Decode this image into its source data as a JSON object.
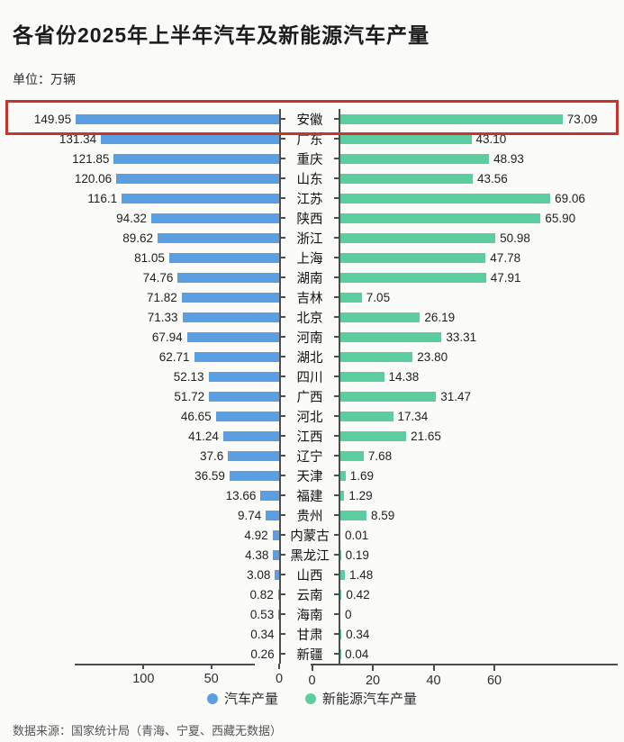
{
  "title": "各省份2025年上半年汽车及新能源汽车产量",
  "unit_label": "单位：万辆",
  "source": "数据来源：国家统计局（青海、宁夏、西藏无数据）",
  "legend": [
    {
      "label": "汽车产量",
      "color": "#5B9EE1"
    },
    {
      "label": "新能源汽车产量",
      "color": "#5CCD9E"
    }
  ],
  "highlight": {
    "province": "安徽",
    "color": "#C8352B"
  },
  "chart_data": {
    "type": "bar",
    "orientation": "horizontal-diverging",
    "grid": false,
    "categories": [
      "安徽",
      "广东",
      "重庆",
      "山东",
      "江苏",
      "陕西",
      "浙江",
      "上海",
      "湖南",
      "吉林",
      "北京",
      "河南",
      "湖北",
      "四川",
      "广西",
      "河北",
      "江西",
      "辽宁",
      "天津",
      "福建",
      "贵州",
      "内蒙古",
      "黑龙江",
      "山西",
      "云南",
      "海南",
      "甘肃",
      "新疆"
    ],
    "series": [
      {
        "name": "汽车产量",
        "side": "left",
        "color": "#5B9EE1",
        "xlim": [
          0,
          150
        ],
        "axis_ticks": [
          100,
          50,
          0
        ],
        "values": [
          149.95,
          131.34,
          121.85,
          120.06,
          116.1,
          94.32,
          89.62,
          81.05,
          74.76,
          71.82,
          71.33,
          67.94,
          62.71,
          52.13,
          51.72,
          46.65,
          41.24,
          37.6,
          36.59,
          13.66,
          9.74,
          4.92,
          4.38,
          3.08,
          0.82,
          0.53,
          0.34,
          0.26
        ],
        "labels": [
          "149.95",
          "131.34",
          "121.85",
          "120.06",
          "116.1",
          "94.32",
          "89.62",
          "81.05",
          "74.76",
          "71.82",
          "71.33",
          "67.94",
          "62.71",
          "52.13",
          "51.72",
          "46.65",
          "41.24",
          "37.6",
          "36.59",
          "13.66",
          "9.74",
          "4.92",
          "4.38",
          "3.08",
          "0.82",
          "0.53",
          "0.34",
          "0.26"
        ]
      },
      {
        "name": "新能源汽车产量",
        "side": "right",
        "color": "#5CCD9E",
        "xlim": [
          0,
          90
        ],
        "axis_ticks": [
          0,
          20,
          40,
          60
        ],
        "values": [
          73.09,
          43.1,
          48.93,
          43.56,
          69.06,
          65.9,
          50.98,
          47.78,
          47.91,
          7.05,
          26.19,
          33.31,
          23.8,
          14.38,
          31.47,
          17.34,
          21.65,
          7.68,
          1.69,
          1.29,
          8.59,
          0.01,
          0.19,
          1.48,
          0.42,
          0,
          0.34,
          0.04
        ],
        "labels": [
          "73.09",
          "43.10",
          "48.93",
          "43.56",
          "69.06",
          "65.90",
          "50.98",
          "47.78",
          "47.91",
          "7.05",
          "26.19",
          "33.31",
          "23.80",
          "14.38",
          "31.47",
          "17.34",
          "21.65",
          "7.68",
          "1.69",
          "1.29",
          "8.59",
          "0.01",
          "0.19",
          "1.48",
          "0.42",
          "0",
          "0.34",
          "0.04"
        ]
      }
    ]
  }
}
